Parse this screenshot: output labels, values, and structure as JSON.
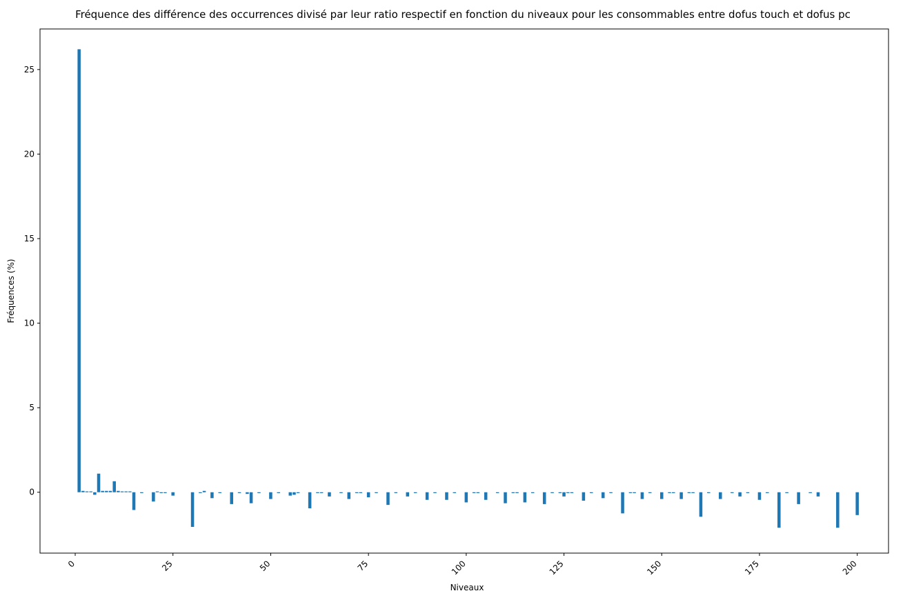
{
  "chart_data": {
    "type": "bar",
    "title": "Fréquence des différence des occurrences divisé par leur ratio respectif en fonction du niveaux pour les consommables entre dofus touch et dofus pc",
    "xlabel": "Niveaux",
    "ylabel": "Fréquences (%)",
    "xlim": [
      -9,
      208
    ],
    "ylim": [
      -3.6,
      27.4
    ],
    "xticks": [
      0,
      25,
      50,
      75,
      100,
      125,
      150,
      175,
      200
    ],
    "yticks": [
      0,
      5,
      10,
      15,
      20,
      25
    ],
    "xtick_rotation": 45,
    "grid": false,
    "legend": "none",
    "bar_color": "#1f77b4",
    "x": [
      1,
      2,
      3,
      4,
      5,
      6,
      7,
      8,
      9,
      10,
      11,
      12,
      13,
      14,
      15,
      17,
      20,
      21,
      22,
      23,
      25,
      30,
      32,
      33,
      35,
      37,
      40,
      42,
      44,
      45,
      47,
      50,
      52,
      55,
      56,
      57,
      60,
      62,
      63,
      65,
      68,
      70,
      72,
      73,
      75,
      77,
      80,
      82,
      85,
      87,
      90,
      92,
      95,
      97,
      100,
      102,
      103,
      105,
      108,
      110,
      112,
      113,
      115,
      117,
      120,
      122,
      124,
      125,
      126,
      127,
      130,
      132,
      135,
      137,
      140,
      142,
      143,
      145,
      147,
      150,
      152,
      153,
      155,
      157,
      158,
      160,
      162,
      165,
      168,
      170,
      172,
      175,
      177,
      180,
      182,
      185,
      188,
      190,
      195,
      200
    ],
    "values": [
      26.2,
      0.08,
      0.05,
      0.05,
      -0.15,
      1.1,
      0.08,
      0.08,
      0.08,
      0.65,
      0.08,
      0.05,
      0.05,
      0.05,
      -1.05,
      -0.05,
      -0.55,
      0.05,
      -0.05,
      -0.05,
      -0.2,
      -2.05,
      -0.05,
      0.08,
      -0.35,
      -0.05,
      -0.7,
      -0.05,
      -0.1,
      -0.65,
      -0.05,
      -0.4,
      -0.05,
      -0.2,
      -0.15,
      -0.05,
      -0.95,
      -0.05,
      -0.05,
      -0.25,
      -0.05,
      -0.4,
      -0.05,
      -0.05,
      -0.3,
      -0.05,
      -0.75,
      -0.05,
      -0.25,
      -0.05,
      -0.45,
      -0.05,
      -0.45,
      -0.05,
      -0.6,
      -0.05,
      -0.05,
      -0.45,
      -0.05,
      -0.65,
      -0.05,
      -0.05,
      -0.6,
      -0.05,
      -0.7,
      -0.05,
      -0.05,
      -0.25,
      -0.05,
      -0.05,
      -0.5,
      -0.05,
      -0.35,
      -0.05,
      -1.25,
      -0.05,
      -0.05,
      -0.4,
      -0.05,
      -0.4,
      -0.05,
      -0.05,
      -0.4,
      -0.05,
      -0.05,
      -1.45,
      -0.05,
      -0.4,
      -0.05,
      -0.25,
      -0.05,
      -0.45,
      -0.05,
      -2.1,
      -0.05,
      -0.7,
      -0.05,
      -0.25,
      -2.1,
      -1.35
    ]
  }
}
